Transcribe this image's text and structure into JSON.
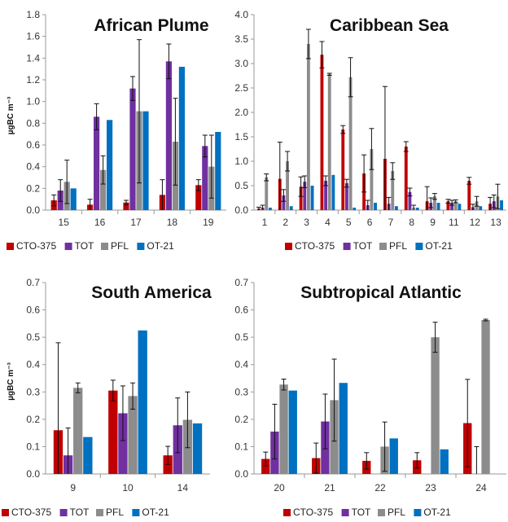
{
  "colors": {
    "CTO-375": "#c00000",
    "TOT": "#7030a0",
    "PFL": "#8c8c8c",
    "OT-21": "#0070c0"
  },
  "chart_data": [
    {
      "type": "bar",
      "title": "African Plume",
      "ylabel": "µgBC m⁻³",
      "ylim": [
        0,
        1.8
      ],
      "yticks": [
        "0.0",
        "0.2",
        "0.4",
        "0.6",
        "0.8",
        "1.0",
        "1.2",
        "1.4",
        "1.6",
        "1.8"
      ],
      "categories": [
        "15",
        "16",
        "17",
        "18",
        "19"
      ],
      "series": [
        {
          "name": "CTO-375",
          "values": [
            0.09,
            0.05,
            0.07,
            0.14,
            0.23
          ],
          "err": [
            0.05,
            0.05,
            0.02,
            0.14,
            0.05
          ]
        },
        {
          "name": "TOT",
          "values": [
            0.18,
            0.86,
            1.12,
            1.37,
            0.59
          ],
          "err": [
            0.1,
            0.12,
            0.11,
            0.16,
            0.1
          ]
        },
        {
          "name": "PFL",
          "values": [
            0.26,
            0.37,
            0.91,
            0.63,
            0.4
          ],
          "err": [
            0.2,
            0.13,
            0.66,
            0.4,
            0.29
          ]
        },
        {
          "name": "OT-21",
          "values": [
            0.2,
            0.83,
            0.91,
            1.32,
            0.72
          ],
          "err": [
            0,
            0,
            0,
            0,
            0
          ]
        }
      ],
      "legend": [
        "CTO-375",
        "TOT",
        "PFL",
        "OT-21"
      ]
    },
    {
      "type": "bar",
      "title": "Caribbean Sea",
      "ylabel": "",
      "ylim": [
        0,
        4.0
      ],
      "yticks": [
        "0.0",
        "0.5",
        "1.0",
        "1.5",
        "2.0",
        "2.5",
        "3.0",
        "3.5",
        "4.0"
      ],
      "categories": [
        "1",
        "2",
        "3",
        "4",
        "5",
        "6",
        "7",
        "8",
        "9",
        "11",
        "12",
        "13"
      ],
      "series": [
        {
          "name": "CTO-375",
          "values": [
            0.03,
            0.64,
            0.48,
            3.18,
            1.65,
            0.75,
            1.05,
            1.3,
            0.18,
            0.18,
            0.6,
            0.13
          ],
          "err": [
            0.03,
            0.75,
            0.2,
            0.27,
            0.08,
            0.38,
            1.48,
            0.1,
            0.3,
            0.04,
            0.07,
            0.13
          ]
        },
        {
          "name": "TOT",
          "values": [
            0.05,
            0.3,
            0.58,
            0.6,
            0.55,
            0.1,
            0.13,
            0.37,
            0.15,
            0.15,
            0.06,
            0.18
          ],
          "err": [
            0.05,
            0.12,
            0.12,
            0.1,
            0.08,
            0.1,
            0.13,
            0.08,
            0.1,
            0.05,
            0.06,
            0.13
          ]
        },
        {
          "name": "PFL",
          "values": [
            0.67,
            1.0,
            3.4,
            2.78,
            2.72,
            1.25,
            0.8,
            0.05,
            0.28,
            0.18,
            0.18,
            0.28
          ],
          "err": [
            0.07,
            0.2,
            0.3,
            0.02,
            0.4,
            0.42,
            0.17,
            0.05,
            0.06,
            0.03,
            0.1,
            0.25
          ]
        },
        {
          "name": "OT-21",
          "values": [
            0.05,
            0.08,
            0.5,
            0.72,
            0.05,
            0.15,
            0.08,
            0.05,
            0.15,
            0.13,
            0.08,
            0.2
          ],
          "err": [
            0,
            0,
            0,
            0,
            0,
            0,
            0,
            0,
            0,
            0,
            0,
            0
          ]
        }
      ],
      "legend": [
        "CTO-375",
        "TOT",
        "PFL",
        "OT-21"
      ]
    },
    {
      "type": "bar",
      "title": "South America",
      "ylabel": "µgBC m⁻³",
      "ylim": [
        0,
        0.7
      ],
      "yticks": [
        "0.0",
        "0.1",
        "0.2",
        "0.3",
        "0.4",
        "0.5",
        "0.6",
        "0.7"
      ],
      "categories": [
        "9",
        "10",
        "14"
      ],
      "series": [
        {
          "name": "CTO-375",
          "values": [
            0.16,
            0.305,
            0.068
          ],
          "err": [
            0.32,
            0.038,
            0.033
          ]
        },
        {
          "name": "TOT",
          "values": [
            0.068,
            0.222,
            0.178
          ],
          "err": [
            0.1,
            0.1,
            0.1
          ]
        },
        {
          "name": "PFL",
          "values": [
            0.315,
            0.285,
            0.198
          ],
          "err": [
            0.018,
            0.048,
            0.102
          ]
        },
        {
          "name": "OT-21",
          "values": [
            0.135,
            0.525,
            0.185
          ],
          "err": [
            0,
            0,
            0
          ]
        }
      ],
      "legend": [
        "CTO-375",
        "TOT",
        "PFL",
        "OT-21"
      ]
    },
    {
      "type": "bar",
      "title": "Subtropical Atlantic",
      "ylabel": "",
      "ylim": [
        0,
        0.7
      ],
      "yticks": [
        "0.0",
        "0.1",
        "0.2",
        "0.3",
        "0.4",
        "0.5",
        "0.6",
        "0.7"
      ],
      "categories": [
        "20",
        "21",
        "22",
        "23",
        "24"
      ],
      "series": [
        {
          "name": "CTO-375",
          "values": [
            0.055,
            0.058,
            0.048,
            0.05,
            0.186
          ],
          "err": [
            0.025,
            0.055,
            0.03,
            0.028,
            0.16
          ]
        },
        {
          "name": "TOT",
          "values": [
            0.155,
            0.192,
            0,
            0,
            0
          ],
          "err": [
            0.1,
            0.1,
            0,
            0,
            0.1
          ]
        },
        {
          "name": "PFL",
          "values": [
            0.327,
            0.27,
            0.1,
            0.5,
            0.563
          ],
          "err": [
            0.02,
            0.15,
            0.09,
            0.055,
            0.003
          ]
        },
        {
          "name": "OT-21",
          "values": [
            0.305,
            0.333,
            0.13,
            0.09,
            0
          ],
          "err": [
            0,
            0,
            0,
            0,
            0
          ]
        }
      ],
      "legend": [
        "CTO-375",
        "TOT",
        "PFL",
        "OT-21"
      ]
    }
  ]
}
